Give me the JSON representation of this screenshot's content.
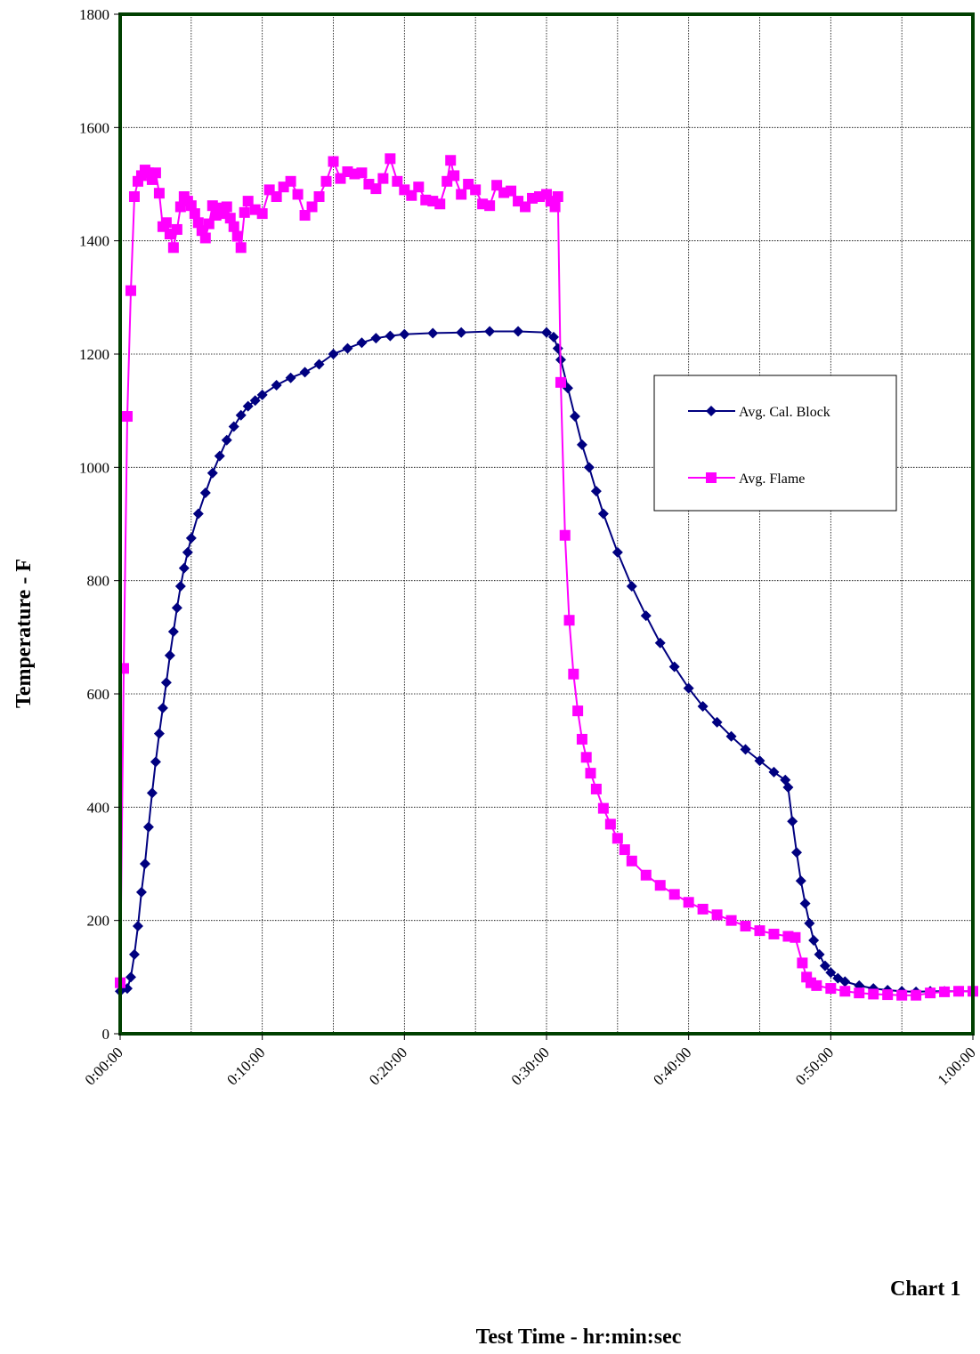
{
  "chart_data": {
    "type": "line",
    "title": "",
    "chart_label": "Chart 1",
    "xlabel": "Test Time - hr:min:sec",
    "ylabel": "Temperature - F",
    "xlim": [
      0,
      60
    ],
    "ylim": [
      0,
      1800
    ],
    "x_unit": "minutes",
    "x_ticks": [
      0,
      10,
      20,
      30,
      40,
      50,
      60
    ],
    "x_tick_labels": [
      "0:00:00",
      "0:10:00",
      "0:20:00",
      "0:30:00",
      "0:40:00",
      "0:50:00",
      "1:00:00"
    ],
    "y_ticks": [
      0,
      200,
      400,
      600,
      800,
      1000,
      1200,
      1400,
      1600,
      1800
    ],
    "y_tick_labels": [
      "0",
      "200",
      "400",
      "600",
      "800",
      "1000",
      "1200",
      "1400",
      "1600",
      "1800"
    ],
    "grid": true,
    "legend_position": "right",
    "series": [
      {
        "name": "Avg. Cal. Block",
        "color": "#000080",
        "marker": "diamond",
        "points": [
          [
            0,
            75
          ],
          [
            0.5,
            80
          ],
          [
            0.75,
            100
          ],
          [
            1,
            140
          ],
          [
            1.25,
            190
          ],
          [
            1.5,
            250
          ],
          [
            1.75,
            300
          ],
          [
            2,
            365
          ],
          [
            2.25,
            425
          ],
          [
            2.5,
            480
          ],
          [
            2.75,
            530
          ],
          [
            3,
            575
          ],
          [
            3.25,
            620
          ],
          [
            3.5,
            668
          ],
          [
            3.75,
            710
          ],
          [
            4,
            752
          ],
          [
            4.25,
            790
          ],
          [
            4.5,
            822
          ],
          [
            4.75,
            850
          ],
          [
            5,
            875
          ],
          [
            5.5,
            918
          ],
          [
            6,
            955
          ],
          [
            6.5,
            990
          ],
          [
            7,
            1020
          ],
          [
            7.5,
            1048
          ],
          [
            8,
            1072
          ],
          [
            8.5,
            1092
          ],
          [
            9,
            1108
          ],
          [
            9.5,
            1118
          ],
          [
            10,
            1128
          ],
          [
            11,
            1145
          ],
          [
            12,
            1158
          ],
          [
            13,
            1168
          ],
          [
            14,
            1182
          ],
          [
            15,
            1200
          ],
          [
            16,
            1210
          ],
          [
            17,
            1220
          ],
          [
            18,
            1228
          ],
          [
            19,
            1232
          ],
          [
            20,
            1235
          ],
          [
            22,
            1237
          ],
          [
            24,
            1238
          ],
          [
            26,
            1240
          ],
          [
            28,
            1240
          ],
          [
            30,
            1238
          ],
          [
            30.5,
            1230
          ],
          [
            30.8,
            1210
          ],
          [
            31,
            1190
          ],
          [
            31.5,
            1140
          ],
          [
            32,
            1090
          ],
          [
            32.5,
            1040
          ],
          [
            33,
            1000
          ],
          [
            33.5,
            958
          ],
          [
            34,
            918
          ],
          [
            35,
            850
          ],
          [
            36,
            790
          ],
          [
            37,
            738
          ],
          [
            38,
            690
          ],
          [
            39,
            648
          ],
          [
            40,
            610
          ],
          [
            41,
            578
          ],
          [
            42,
            550
          ],
          [
            43,
            525
          ],
          [
            44,
            502
          ],
          [
            45,
            482
          ],
          [
            46,
            462
          ],
          [
            46.8,
            448
          ],
          [
            47,
            435
          ],
          [
            47.3,
            375
          ],
          [
            47.6,
            320
          ],
          [
            47.9,
            270
          ],
          [
            48.2,
            230
          ],
          [
            48.5,
            195
          ],
          [
            48.8,
            165
          ],
          [
            49.2,
            140
          ],
          [
            49.6,
            120
          ],
          [
            50,
            108
          ],
          [
            50.5,
            98
          ],
          [
            51,
            92
          ],
          [
            52,
            85
          ],
          [
            53,
            80
          ],
          [
            54,
            77
          ],
          [
            55,
            75
          ],
          [
            56,
            74
          ],
          [
            57,
            75
          ],
          [
            58,
            75
          ],
          [
            59,
            75
          ],
          [
            60,
            75
          ]
        ]
      },
      {
        "name": "Avg. Flame",
        "color": "#ff00ff",
        "marker": "square",
        "points": [
          [
            0,
            90
          ],
          [
            0.25,
            645
          ],
          [
            0.5,
            1090
          ],
          [
            0.75,
            1312
          ],
          [
            1,
            1478
          ],
          [
            1.25,
            1505
          ],
          [
            1.5,
            1515
          ],
          [
            1.75,
            1525
          ],
          [
            2,
            1520
          ],
          [
            2.25,
            1508
          ],
          [
            2.5,
            1520
          ],
          [
            2.75,
            1484
          ],
          [
            3,
            1425
          ],
          [
            3.25,
            1432
          ],
          [
            3.5,
            1412
          ],
          [
            3.75,
            1388
          ],
          [
            4,
            1420
          ],
          [
            4.25,
            1460
          ],
          [
            4.5,
            1478
          ],
          [
            4.75,
            1470
          ],
          [
            5,
            1462
          ],
          [
            5.25,
            1448
          ],
          [
            5.5,
            1432
          ],
          [
            5.75,
            1418
          ],
          [
            6,
            1405
          ],
          [
            6.25,
            1430
          ],
          [
            6.5,
            1462
          ],
          [
            6.75,
            1445
          ],
          [
            7,
            1458
          ],
          [
            7.25,
            1448
          ],
          [
            7.5,
            1460
          ],
          [
            7.75,
            1440
          ],
          [
            8,
            1425
          ],
          [
            8.25,
            1408
          ],
          [
            8.5,
            1388
          ],
          [
            8.75,
            1450
          ],
          [
            9,
            1470
          ],
          [
            9.5,
            1455
          ],
          [
            10,
            1448
          ],
          [
            10.5,
            1490
          ],
          [
            11,
            1478
          ],
          [
            11.5,
            1495
          ],
          [
            12,
            1505
          ],
          [
            12.5,
            1482
          ],
          [
            13,
            1445
          ],
          [
            13.5,
            1460
          ],
          [
            14,
            1478
          ],
          [
            14.5,
            1505
          ],
          [
            15,
            1540
          ],
          [
            15.5,
            1510
          ],
          [
            16,
            1522
          ],
          [
            16.5,
            1518
          ],
          [
            17,
            1520
          ],
          [
            17.5,
            1500
          ],
          [
            18,
            1492
          ],
          [
            18.5,
            1510
          ],
          [
            19,
            1545
          ],
          [
            19.5,
            1505
          ],
          [
            20,
            1490
          ],
          [
            20.5,
            1480
          ],
          [
            21,
            1495
          ],
          [
            21.5,
            1472
          ],
          [
            22,
            1470
          ],
          [
            22.5,
            1465
          ],
          [
            23,
            1505
          ],
          [
            23.25,
            1542
          ],
          [
            23.5,
            1515
          ],
          [
            24,
            1482
          ],
          [
            24.5,
            1500
          ],
          [
            25,
            1490
          ],
          [
            25.5,
            1465
          ],
          [
            26,
            1462
          ],
          [
            26.5,
            1498
          ],
          [
            27,
            1485
          ],
          [
            27.5,
            1488
          ],
          [
            28,
            1470
          ],
          [
            28.5,
            1460
          ],
          [
            29,
            1475
          ],
          [
            29.5,
            1478
          ],
          [
            30,
            1482
          ],
          [
            30.3,
            1470
          ],
          [
            30.6,
            1460
          ],
          [
            30.8,
            1478
          ],
          [
            31,
            1150
          ],
          [
            31.3,
            880
          ],
          [
            31.6,
            730
          ],
          [
            31.9,
            635
          ],
          [
            32.2,
            570
          ],
          [
            32.5,
            520
          ],
          [
            32.8,
            488
          ],
          [
            33.1,
            460
          ],
          [
            33.5,
            432
          ],
          [
            34,
            398
          ],
          [
            34.5,
            370
          ],
          [
            35,
            345
          ],
          [
            35.5,
            325
          ],
          [
            36,
            305
          ],
          [
            37,
            280
          ],
          [
            38,
            262
          ],
          [
            39,
            246
          ],
          [
            40,
            232
          ],
          [
            41,
            220
          ],
          [
            42,
            210
          ],
          [
            43,
            200
          ],
          [
            44,
            190
          ],
          [
            45,
            182
          ],
          [
            46,
            176
          ],
          [
            47,
            172
          ],
          [
            47.5,
            170
          ],
          [
            48,
            125
          ],
          [
            48.3,
            100
          ],
          [
            48.6,
            90
          ],
          [
            49,
            85
          ],
          [
            50,
            80
          ],
          [
            51,
            75
          ],
          [
            52,
            72
          ],
          [
            53,
            70
          ],
          [
            54,
            69
          ],
          [
            55,
            68
          ],
          [
            56,
            68
          ],
          [
            57,
            72
          ],
          [
            58,
            74
          ],
          [
            59,
            75
          ],
          [
            60,
            75
          ]
        ]
      }
    ]
  }
}
